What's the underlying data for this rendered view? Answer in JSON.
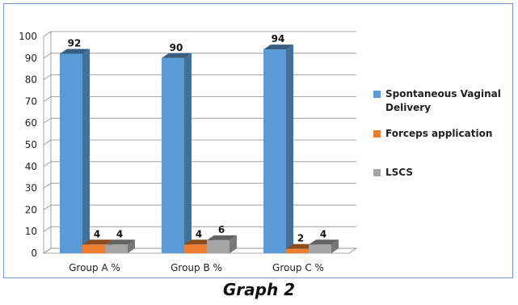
{
  "caption": "Graph 2",
  "colors": {
    "Spontaneous Vaginal Delivery": "#5b9bd5",
    "Forceps application": "#ed7d31",
    "LSCS": "#a5a5a5",
    "frame": "#6f9bd1",
    "grid": "#8c8c8c"
  },
  "chart_data": {
    "type": "bar",
    "categories": [
      "Group A %",
      "Group B %",
      "Group C %"
    ],
    "series": [
      {
        "name": "Spontaneous Vaginal Delivery",
        "values": [
          92,
          90,
          94
        ]
      },
      {
        "name": "Forceps application",
        "values": [
          4,
          4,
          2
        ]
      },
      {
        "name": "LSCS",
        "values": [
          4,
          6,
          4
        ]
      }
    ],
    "ylim": [
      0,
      100
    ],
    "yticks": [
      0,
      10,
      20,
      30,
      40,
      50,
      60,
      70,
      80,
      90,
      100
    ],
    "grid": true,
    "legend_position": "right",
    "style": "3d-clustered-column"
  }
}
